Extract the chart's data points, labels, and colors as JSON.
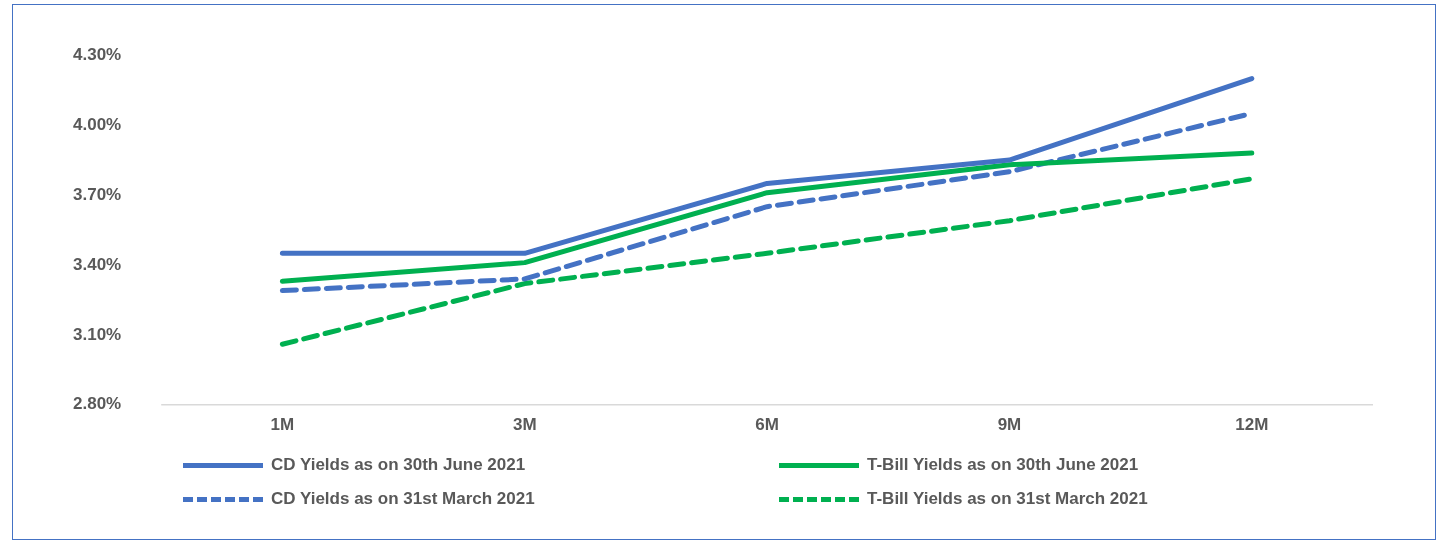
{
  "chart_data": {
    "type": "line",
    "categories": [
      "1M",
      "3M",
      "6M",
      "9M",
      "12M"
    ],
    "series": [
      {
        "name": "CD Yields as on 30th June 2021",
        "color": "#4472c4",
        "line_style": "solid",
        "values": [
          3.45,
          3.45,
          3.75,
          3.85,
          4.2
        ]
      },
      {
        "name": "T-Bill Yields as on 30th June 2021",
        "color": "#00b050",
        "line_style": "solid",
        "values": [
          3.33,
          3.41,
          3.71,
          3.83,
          3.88
        ]
      },
      {
        "name": "CD Yields as on 31st March 2021",
        "color": "#4472c4",
        "line_style": "dashed",
        "values": [
          3.29,
          3.34,
          3.65,
          3.8,
          4.05
        ]
      },
      {
        "name": "T-Bill Yields as on 31st March 2021",
        "color": "#00b050",
        "line_style": "dashed",
        "values": [
          3.06,
          3.32,
          3.45,
          3.59,
          3.77
        ]
      }
    ],
    "ylim": [
      2.8,
      4.3
    ],
    "yticks": [
      {
        "value": 2.8,
        "label": "2.80%"
      },
      {
        "value": 3.1,
        "label": "3.10%"
      },
      {
        "value": 3.4,
        "label": "3.40%"
      },
      {
        "value": 3.7,
        "label": "3.70%"
      },
      {
        "value": 4.0,
        "label": "4.00%"
      },
      {
        "value": 4.3,
        "label": "4.30%"
      }
    ],
    "grid": false,
    "legend": "bottom",
    "marker": "none"
  }
}
